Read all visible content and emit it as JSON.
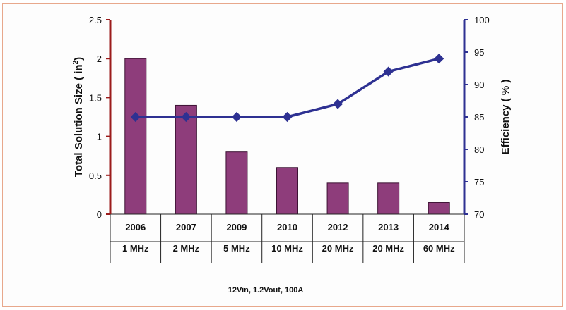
{
  "chart_data": {
    "type": "bar+line",
    "categories": [
      "2006",
      "2007",
      "2009",
      "2010",
      "2012",
      "2013",
      "2014"
    ],
    "sub_categories": [
      "1 MHz",
      "2 MHz",
      "5 MHz",
      "10 MHz",
      "20 MHz",
      "20 MHz",
      "60 MHz"
    ],
    "series": [
      {
        "type": "bar",
        "axis": "left",
        "values": [
          2.0,
          1.4,
          0.8,
          0.6,
          0.4,
          0.4,
          0.15
        ]
      },
      {
        "type": "line",
        "axis": "right",
        "values": [
          85,
          85,
          85,
          85,
          87,
          92,
          94
        ]
      }
    ],
    "ylabel_left_main": "Total Solution Size ( in",
    "ylabel_left_sup": "2",
    "ylabel_left_end": ")",
    "ylabel_right": "Efficiency ( % )",
    "ylim_left": [
      0,
      2.5
    ],
    "yticks_left": [
      "0",
      "0.5",
      "1",
      "1.5",
      "2",
      "2.5"
    ],
    "ylim_right": [
      70,
      100
    ],
    "yticks_right": [
      "70",
      "75",
      "80",
      "85",
      "90",
      "95",
      "100"
    ],
    "note": "12Vin, 1.2Vout, 100A",
    "grid": false,
    "colors": {
      "bar_fill": "#8e3d7b",
      "bar_stroke": "#3d1334",
      "line": "#2e3192",
      "left_axis": "#9b1b1b",
      "right_axis": "#2e3192"
    }
  }
}
